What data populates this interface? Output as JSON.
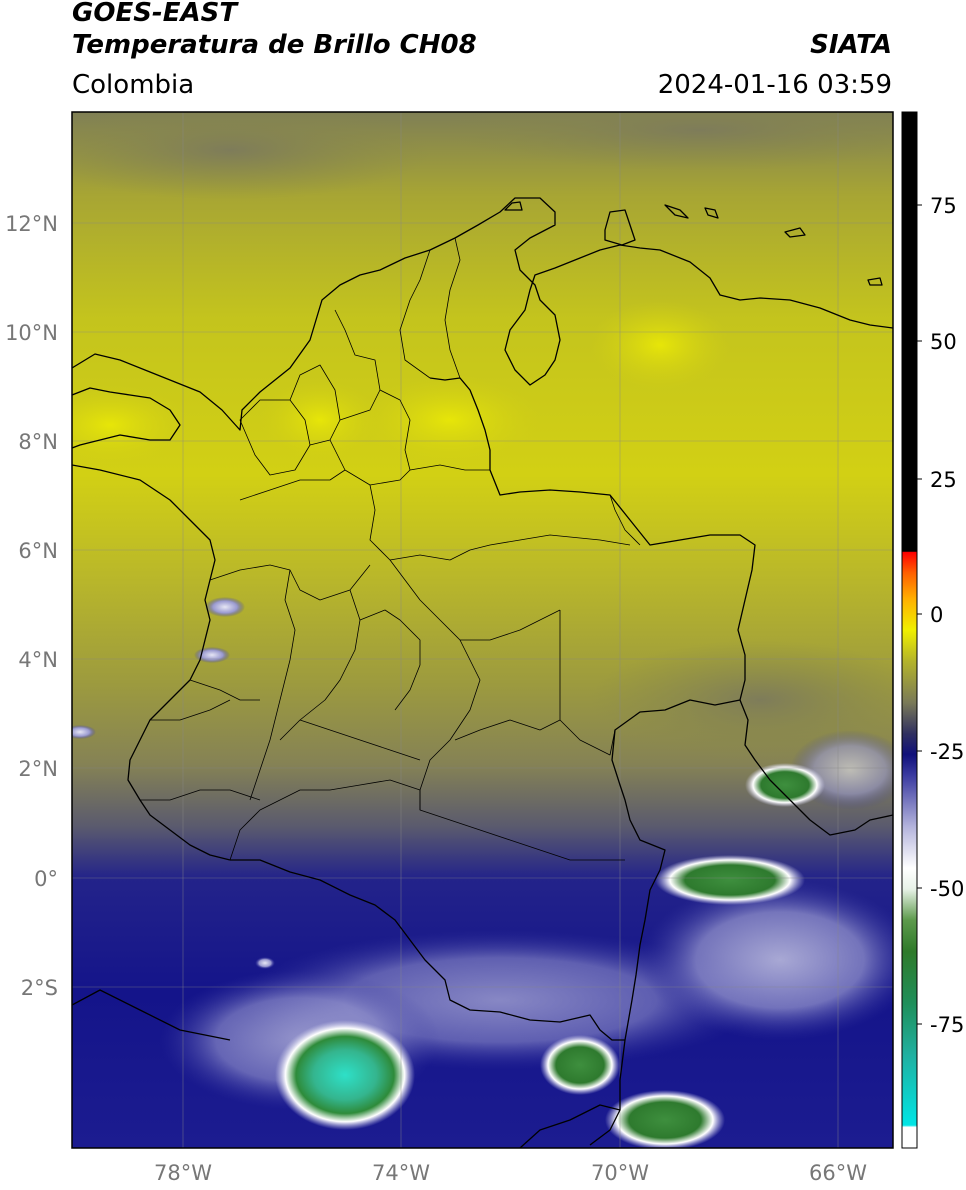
{
  "header": {
    "satellite": "GOES-EAST",
    "product": "Temperatura de Brillo CH08",
    "region": "Colombia",
    "agency": "SIATA",
    "timestamp": "2024-01-16 03:59"
  },
  "axes": {
    "lat_labels": [
      "12°N",
      "10°N",
      "8°N",
      "6°N",
      "4°N",
      "2°N",
      "0°",
      "2°S"
    ],
    "lon_labels": [
      "78°W",
      "74°W",
      "70°W",
      "66°W"
    ]
  },
  "colorbar": {
    "tick_labels": [
      "75",
      "50",
      "25",
      "0",
      "-25",
      "-50",
      "-75"
    ],
    "range": [
      -95,
      90
    ]
  },
  "colors": {
    "warm_yellow": "#c9c81a",
    "olive": "#8a8a4a",
    "dark_navy": "#14148a",
    "light_lavender": "#c8c8e8",
    "cold_green": "#2e8b3a",
    "coldest_cyan": "#2ee0c8"
  }
}
